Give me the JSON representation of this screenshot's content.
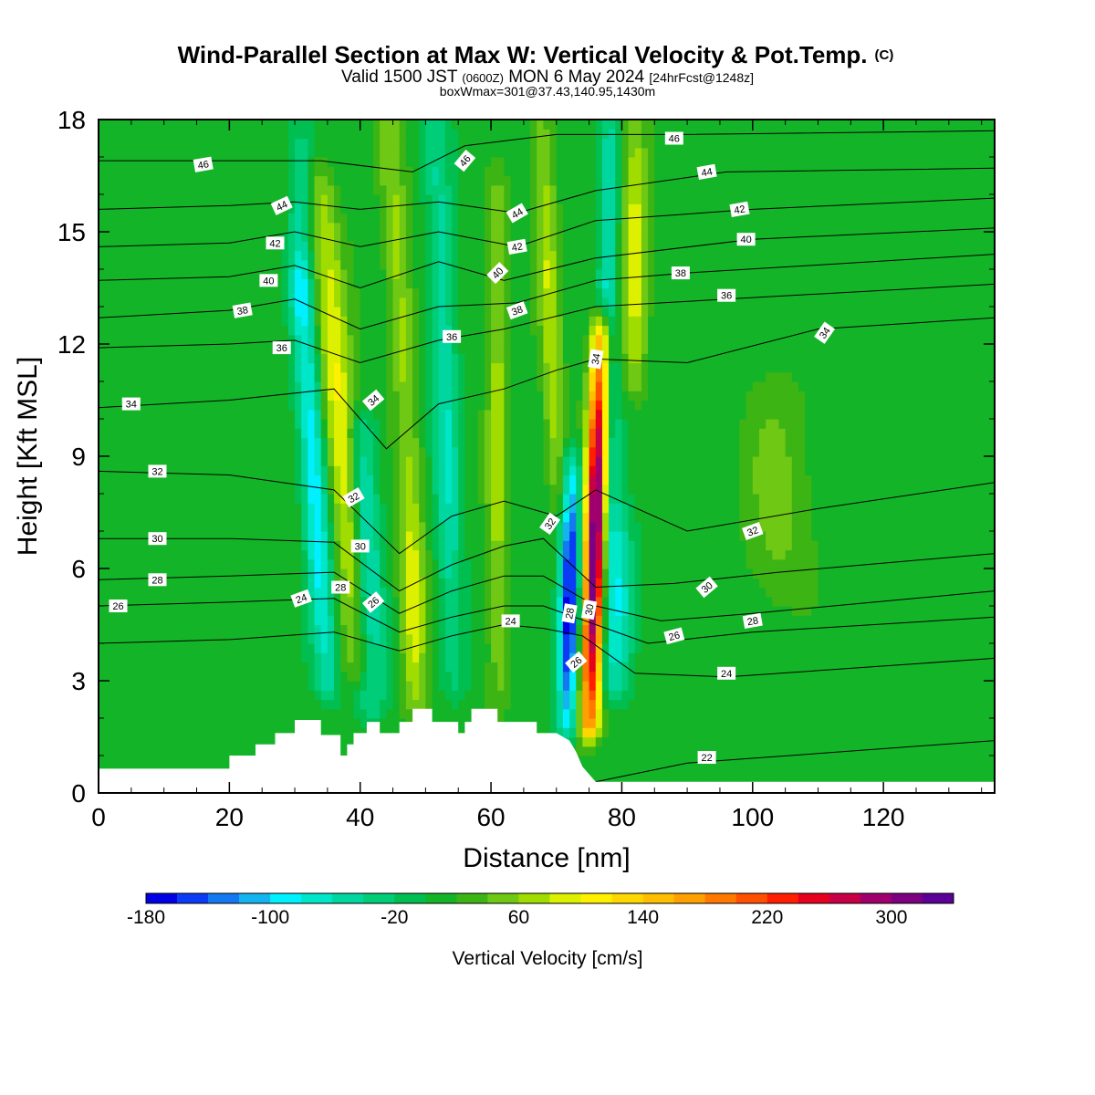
{
  "chart_data": {
    "type": "heatmap",
    "title": "Wind-Parallel Section at Max W: Vertical Velocity & Pot.Temp.",
    "copyright": "(C)",
    "subtitle_valid": "Valid 1500 JST",
    "subtitle_z": "(0600Z)",
    "subtitle_date": "MON 6 May 2024",
    "subtitle_fcst": "[24hrFcst@1248z]",
    "subtitle2": "boxWmax=301@37.43,140.95,1430m",
    "xlabel": "Distance [nm]",
    "ylabel": "Height [Kft MSL]",
    "xlim": [
      0,
      137
    ],
    "ylim": [
      0,
      18
    ],
    "xticks": [
      "0",
      "20",
      "40",
      "60",
      "80",
      "100",
      "120"
    ],
    "xtick_values": [
      0,
      20,
      40,
      60,
      80,
      100,
      120
    ],
    "yticks": [
      "0",
      "3",
      "6",
      "9",
      "12",
      "15",
      "18"
    ],
    "ytick_values": [
      0,
      3,
      6,
      9,
      12,
      15,
      18
    ],
    "colorbar": {
      "label": "Vertical Velocity [cm/s]",
      "min": -180,
      "max": 340,
      "step": 20,
      "tick_labels": [
        "-180",
        "-100",
        "-20",
        "60",
        "140",
        "220",
        "300"
      ],
      "tick_values": [
        -180,
        -100,
        -20,
        60,
        140,
        220,
        300
      ],
      "colors": [
        "#0000e6",
        "#0a3cf5",
        "#1478f0",
        "#14b4f0",
        "#00f0ff",
        "#00e6c8",
        "#00d7a0",
        "#00cd78",
        "#00be50",
        "#14b428",
        "#3cb414",
        "#6ec814",
        "#a0dc00",
        "#dcf000",
        "#fff000",
        "#ffd700",
        "#ffbe00",
        "#ffa000",
        "#ff7800",
        "#ff5000",
        "#ff1e00",
        "#e6001e",
        "#c80046",
        "#a0006e",
        "#7d0082",
        "#5a0096"
      ]
    },
    "terrain": [
      [
        0,
        0.65
      ],
      [
        20,
        0.65
      ],
      [
        20,
        1.0
      ],
      [
        24,
        1.0
      ],
      [
        24,
        1.3
      ],
      [
        27,
        1.3
      ],
      [
        27,
        1.6
      ],
      [
        30,
        1.6
      ],
      [
        30,
        1.95
      ],
      [
        34,
        1.95
      ],
      [
        34,
        1.55
      ],
      [
        37,
        1.55
      ],
      [
        37,
        1.0
      ],
      [
        38,
        1.0
      ],
      [
        38,
        1.3
      ],
      [
        39,
        1.3
      ],
      [
        39,
        1.6
      ],
      [
        41,
        1.6
      ],
      [
        41,
        1.9
      ],
      [
        43,
        1.9
      ],
      [
        43,
        1.6
      ],
      [
        46,
        1.6
      ],
      [
        46,
        1.9
      ],
      [
        48,
        1.9
      ],
      [
        48,
        2.25
      ],
      [
        51,
        2.25
      ],
      [
        51,
        1.9
      ],
      [
        55,
        1.9
      ],
      [
        55,
        1.6
      ],
      [
        56,
        1.6
      ],
      [
        56,
        1.9
      ],
      [
        57,
        1.9
      ],
      [
        57,
        2.25
      ],
      [
        61,
        2.25
      ],
      [
        61,
        1.9
      ],
      [
        67,
        1.9
      ],
      [
        67,
        1.6
      ],
      [
        70,
        1.6
      ],
      [
        72,
        1.4
      ],
      [
        73,
        1.1
      ],
      [
        74,
        0.7
      ],
      [
        75,
        0.5
      ],
      [
        76,
        0.3
      ],
      [
        137,
        0.3
      ]
    ],
    "bands": [
      {
        "x": 33,
        "w": 1.9,
        "amp": -110,
        "top": 13.5,
        "bot": 3.0,
        "slope": 0.62
      },
      {
        "x": 37,
        "w": 2.4,
        "amp": 95,
        "top": 16.0,
        "bot": 3.5,
        "slope": 0.8
      },
      {
        "x": 41,
        "w": 2.2,
        "amp": -95,
        "top": 9.5,
        "bot": 2.5,
        "slope": 0.4
      },
      {
        "x": 48,
        "w": 2.0,
        "amp": 90,
        "top": 8.0,
        "bot": 2.5,
        "slope": 0.2
      },
      {
        "x": 46,
        "w": 2.0,
        "amp": 60,
        "top": 18.0,
        "bot": 9.0,
        "slope": 0.6
      },
      {
        "x": 53,
        "w": 2.0,
        "amp": -70,
        "top": 18.0,
        "bot": 3.0,
        "slope": 0.3
      },
      {
        "x": 31,
        "w": 1.8,
        "amp": -60,
        "top": 18.0,
        "bot": 13.0,
        "slope": 0.0
      },
      {
        "x": 61,
        "w": 1.6,
        "amp": 60,
        "top": 16.0,
        "bot": 2.5,
        "slope": 0.0
      },
      {
        "x": 72,
        "w": 1.5,
        "amp": -185,
        "top": 8.5,
        "bot": 2.0,
        "slope": -0.2
      },
      {
        "x": 69,
        "w": 1.6,
        "amp": 70,
        "top": 18.0,
        "bot": 8.0,
        "slope": 0.4
      },
      {
        "x": 76,
        "w": 1.6,
        "amp": 330,
        "top": 12.0,
        "bot": 2.0,
        "slope": -0.3
      },
      {
        "x": 78,
        "w": 1.5,
        "amp": -90,
        "top": 18.0,
        "bot": 3.0,
        "slope": 0.0
      },
      {
        "x": 82,
        "w": 1.9,
        "amp": 80,
        "top": 18.0,
        "bot": 11.0,
        "slope": 0.0
      },
      {
        "x": 80,
        "w": 2.0,
        "amp": -80,
        "top": 7.0,
        "bot": 3.0,
        "slope": 0.0
      },
      {
        "x": 104,
        "w": 5.0,
        "amp": 40,
        "top": 10.5,
        "bot": 5.5,
        "slope": 0.0
      }
    ],
    "isentropes": [
      {
        "theta": 22,
        "points": [
          [
            76,
            0.3
          ],
          [
            90,
            0.8
          ],
          [
            137,
            1.4
          ]
        ]
      },
      {
        "theta": 24,
        "points": [
          [
            0,
            4.0
          ],
          [
            20,
            4.1
          ],
          [
            36,
            4.3
          ],
          [
            46,
            3.8
          ],
          [
            54,
            4.2
          ],
          [
            62,
            4.5
          ],
          [
            68,
            4.4
          ],
          [
            74,
            4.2
          ],
          [
            82,
            3.2
          ],
          [
            96,
            3.1
          ],
          [
            137,
            3.6
          ]
        ]
      },
      {
        "theta": 26,
        "points": [
          [
            0,
            5.0
          ],
          [
            20,
            5.1
          ],
          [
            36,
            5.2
          ],
          [
            46,
            4.3
          ],
          [
            54,
            4.7
          ],
          [
            62,
            5.0
          ],
          [
            68,
            5.0
          ],
          [
            76,
            4.5
          ],
          [
            84,
            4.0
          ],
          [
            100,
            4.3
          ],
          [
            137,
            4.7
          ]
        ]
      },
      {
        "theta": 28,
        "points": [
          [
            0,
            5.7
          ],
          [
            20,
            5.8
          ],
          [
            36,
            5.9
          ],
          [
            46,
            4.8
          ],
          [
            54,
            5.4
          ],
          [
            62,
            5.8
          ],
          [
            68,
            5.8
          ],
          [
            76,
            5.0
          ],
          [
            86,
            4.6
          ],
          [
            100,
            4.8
          ],
          [
            137,
            5.4
          ]
        ]
      },
      {
        "theta": 30,
        "points": [
          [
            0,
            6.8
          ],
          [
            20,
            6.8
          ],
          [
            36,
            6.7
          ],
          [
            46,
            5.4
          ],
          [
            54,
            6.1
          ],
          [
            62,
            6.6
          ],
          [
            68,
            6.8
          ],
          [
            76,
            5.5
          ],
          [
            88,
            5.6
          ],
          [
            104,
            5.9
          ],
          [
            137,
            6.4
          ]
        ]
      },
      {
        "theta": 32,
        "points": [
          [
            0,
            8.6
          ],
          [
            20,
            8.5
          ],
          [
            36,
            8.1
          ],
          [
            46,
            6.4
          ],
          [
            54,
            7.4
          ],
          [
            62,
            7.8
          ],
          [
            70,
            7.4
          ],
          [
            76,
            8.1
          ],
          [
            90,
            7.0
          ],
          [
            110,
            7.6
          ],
          [
            137,
            8.3
          ]
        ]
      },
      {
        "theta": 34,
        "points": [
          [
            0,
            10.3
          ],
          [
            20,
            10.5
          ],
          [
            36,
            10.8
          ],
          [
            44,
            9.2
          ],
          [
            52,
            10.4
          ],
          [
            62,
            10.8
          ],
          [
            70,
            11.3
          ],
          [
            76,
            11.6
          ],
          [
            90,
            11.5
          ],
          [
            110,
            12.4
          ],
          [
            137,
            12.7
          ]
        ]
      },
      {
        "theta": 36,
        "points": [
          [
            0,
            11.9
          ],
          [
            20,
            12.0
          ],
          [
            30,
            12.1
          ],
          [
            40,
            11.5
          ],
          [
            52,
            12.1
          ],
          [
            62,
            12.4
          ],
          [
            76,
            13.0
          ],
          [
            96,
            13.2
          ],
          [
            137,
            13.6
          ]
        ]
      },
      {
        "theta": 38,
        "points": [
          [
            0,
            12.7
          ],
          [
            20,
            12.9
          ],
          [
            30,
            13.2
          ],
          [
            40,
            12.4
          ],
          [
            52,
            13.0
          ],
          [
            64,
            13.1
          ],
          [
            76,
            13.7
          ],
          [
            90,
            13.9
          ],
          [
            137,
            14.4
          ]
        ]
      },
      {
        "theta": 40,
        "points": [
          [
            0,
            13.7
          ],
          [
            20,
            13.8
          ],
          [
            30,
            14.1
          ],
          [
            40,
            13.5
          ],
          [
            52,
            14.2
          ],
          [
            62,
            13.7
          ],
          [
            76,
            14.3
          ],
          [
            100,
            14.8
          ],
          [
            137,
            15.1
          ]
        ]
      },
      {
        "theta": 42,
        "points": [
          [
            0,
            14.6
          ],
          [
            20,
            14.7
          ],
          [
            30,
            15.0
          ],
          [
            40,
            14.6
          ],
          [
            52,
            15.0
          ],
          [
            64,
            14.6
          ],
          [
            76,
            15.3
          ],
          [
            100,
            15.6
          ],
          [
            137,
            15.9
          ]
        ]
      },
      {
        "theta": 44,
        "points": [
          [
            0,
            15.6
          ],
          [
            20,
            15.7
          ],
          [
            30,
            15.8
          ],
          [
            40,
            15.6
          ],
          [
            52,
            15.8
          ],
          [
            64,
            15.5
          ],
          [
            76,
            16.1
          ],
          [
            96,
            16.6
          ],
          [
            137,
            16.7
          ]
        ]
      },
      {
        "theta": 46,
        "points": [
          [
            0,
            16.9
          ],
          [
            20,
            16.9
          ],
          [
            34,
            16.9
          ],
          [
            48,
            16.6
          ],
          [
            56,
            17.3
          ],
          [
            70,
            17.6
          ],
          [
            90,
            17.6
          ],
          [
            137,
            17.7
          ]
        ]
      }
    ],
    "isentrope_labels": [
      {
        "text": "46",
        "x": 16,
        "y": 16.8,
        "rot": -10
      },
      {
        "text": "44",
        "x": 28,
        "y": 15.7,
        "rot": -25
      },
      {
        "text": "42",
        "x": 27,
        "y": 14.7,
        "rot": 0
      },
      {
        "text": "40",
        "x": 26,
        "y": 13.7,
        "rot": 0
      },
      {
        "text": "38",
        "x": 22,
        "y": 12.9,
        "rot": -10
      },
      {
        "text": "36",
        "x": 28,
        "y": 11.9,
        "rot": 0
      },
      {
        "text": "34",
        "x": 5,
        "y": 10.4,
        "rot": 0
      },
      {
        "text": "32",
        "x": 9,
        "y": 8.6,
        "rot": 0
      },
      {
        "text": "30",
        "x": 9,
        "y": 6.8,
        "rot": 0
      },
      {
        "text": "28",
        "x": 9,
        "y": 5.7,
        "rot": 0
      },
      {
        "text": "26",
        "x": 3,
        "y": 5.0,
        "rot": 0
      },
      {
        "text": "24",
        "x": 31,
        "y": 5.2,
        "rot": -20
      },
      {
        "text": "28",
        "x": 37,
        "y": 5.5,
        "rot": 0
      },
      {
        "text": "26",
        "x": 42,
        "y": 5.1,
        "rot": -40
      },
      {
        "text": "30",
        "x": 40,
        "y": 6.6,
        "rot": 0
      },
      {
        "text": "32",
        "x": 39,
        "y": 7.9,
        "rot": -30
      },
      {
        "text": "34",
        "x": 42,
        "y": 10.5,
        "rot": -40
      },
      {
        "text": "36",
        "x": 54,
        "y": 12.2,
        "rot": 0
      },
      {
        "text": "38",
        "x": 64,
        "y": 12.9,
        "rot": -20
      },
      {
        "text": "40",
        "x": 61,
        "y": 13.9,
        "rot": -45
      },
      {
        "text": "42",
        "x": 64,
        "y": 14.6,
        "rot": -10
      },
      {
        "text": "44",
        "x": 64,
        "y": 15.5,
        "rot": -30
      },
      {
        "text": "46",
        "x": 56,
        "y": 16.9,
        "rot": -50
      },
      {
        "text": "46",
        "x": 88,
        "y": 17.5,
        "rot": 0
      },
      {
        "text": "44",
        "x": 93,
        "y": 16.6,
        "rot": -10
      },
      {
        "text": "42",
        "x": 98,
        "y": 15.6,
        "rot": -10
      },
      {
        "text": "40",
        "x": 99,
        "y": 14.8,
        "rot": 0
      },
      {
        "text": "38",
        "x": 89,
        "y": 13.9,
        "rot": 0
      },
      {
        "text": "36",
        "x": 96,
        "y": 13.3,
        "rot": 0
      },
      {
        "text": "34",
        "x": 111,
        "y": 12.3,
        "rot": -55
      },
      {
        "text": "34",
        "x": 76,
        "y": 11.6,
        "rot": -80
      },
      {
        "text": "32",
        "x": 69,
        "y": 7.2,
        "rot": -55
      },
      {
        "text": "32",
        "x": 100,
        "y": 7.0,
        "rot": -20
      },
      {
        "text": "30",
        "x": 93,
        "y": 5.5,
        "rot": -40
      },
      {
        "text": "28",
        "x": 72,
        "y": 4.8,
        "rot": -80
      },
      {
        "text": "30",
        "x": 75,
        "y": 4.9,
        "rot": -80
      },
      {
        "text": "28",
        "x": 100,
        "y": 4.6,
        "rot": -10
      },
      {
        "text": "26",
        "x": 88,
        "y": 4.2,
        "rot": -15
      },
      {
        "text": "24",
        "x": 96,
        "y": 3.2,
        "rot": 0
      },
      {
        "text": "24",
        "x": 63,
        "y": 4.6,
        "rot": 0
      },
      {
        "text": "26",
        "x": 73,
        "y": 3.5,
        "rot": -40
      },
      {
        "text": "22",
        "x": 93,
        "y": 0.95,
        "rot": 0
      }
    ]
  }
}
